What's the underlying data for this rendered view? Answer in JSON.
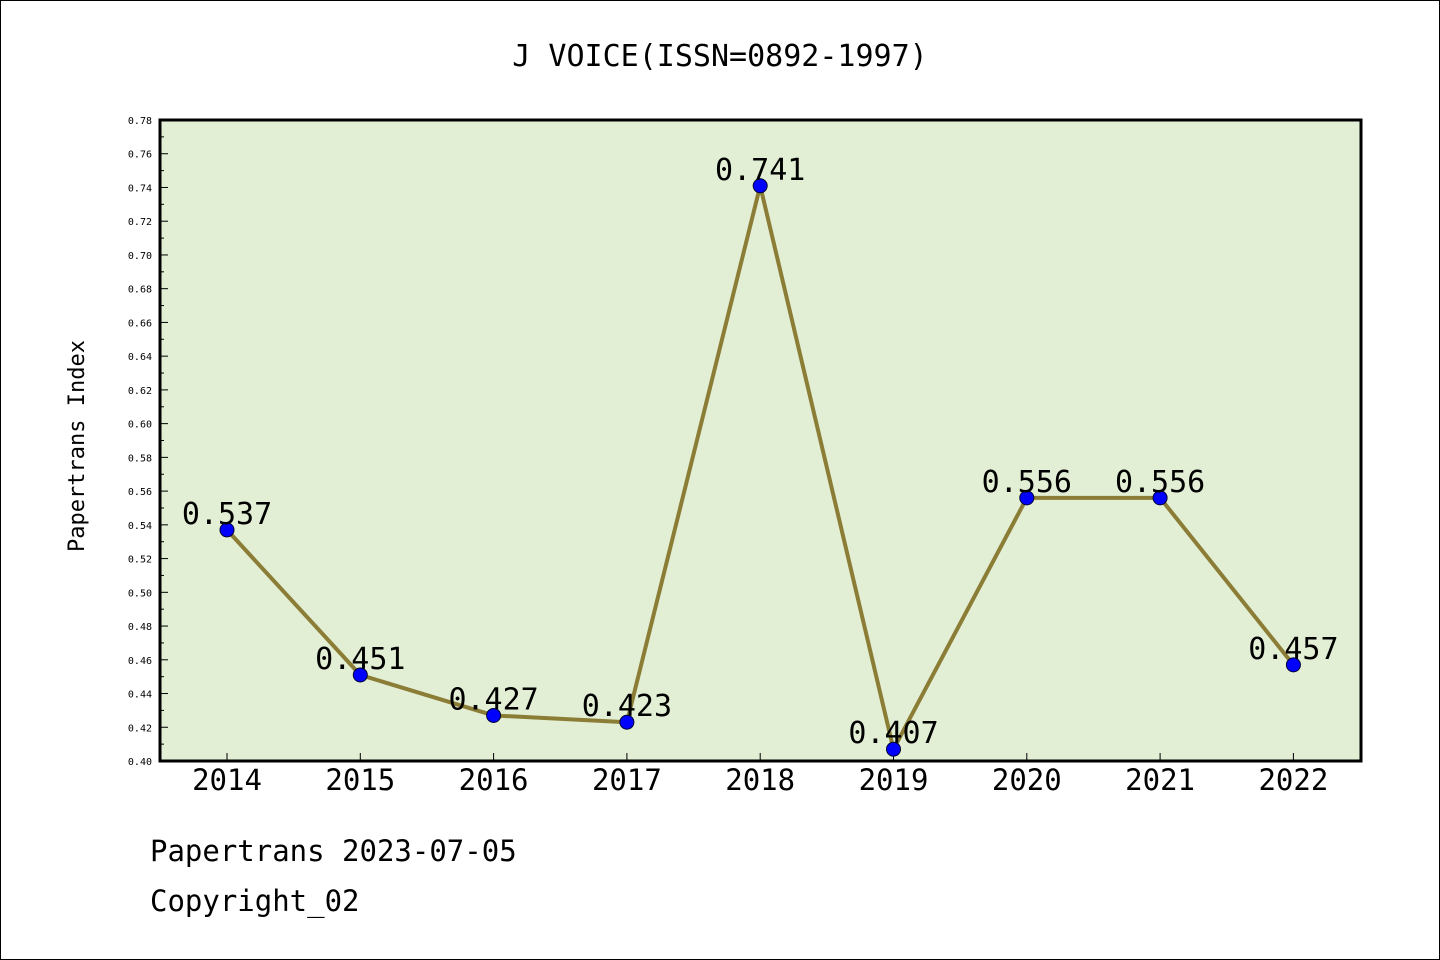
{
  "chart_data": {
    "type": "line",
    "title": "J VOICE(ISSN=0892-1997)",
    "xlabel": "",
    "ylabel": "Papertrans Index",
    "categories": [
      "2014",
      "2015",
      "2016",
      "2017",
      "2018",
      "2019",
      "2020",
      "2021",
      "2022"
    ],
    "values": [
      0.537,
      0.451,
      0.427,
      0.423,
      0.741,
      0.407,
      0.556,
      0.556,
      0.457
    ],
    "data_labels": [
      "0.537",
      "0.451",
      "0.427",
      "0.423",
      "0.741",
      "0.407",
      "0.556",
      "0.556",
      "0.457"
    ],
    "ylim": [
      0.4,
      0.78
    ],
    "yticks": [
      "0.40",
      "0.42",
      "0.44",
      "0.46",
      "0.48",
      "0.50",
      "0.52",
      "0.54",
      "0.56",
      "0.58",
      "0.60",
      "0.62",
      "0.64",
      "0.66",
      "0.68",
      "0.70",
      "0.72",
      "0.74",
      "0.76",
      "0.78"
    ],
    "grid": false,
    "colors": {
      "line": "#8b7d35",
      "marker": "#0000ff",
      "plot_bg": "#e2efd5"
    }
  },
  "footer": {
    "line1": "Papertrans 2023-07-05",
    "line2": "Copyright_02"
  }
}
